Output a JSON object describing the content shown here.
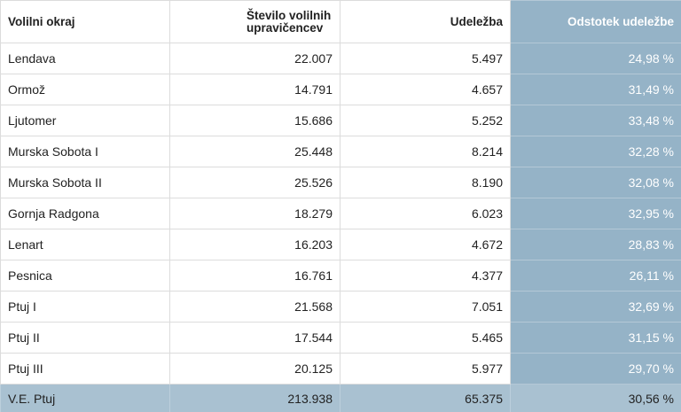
{
  "table": {
    "header": [
      "Volilni okraj",
      "Število volilnih upravičencev",
      "Udeležba",
      "Odstotek udeležbe"
    ],
    "rows": [
      [
        "Lendava",
        "22.007",
        "5.497",
        "24,98 %"
      ],
      [
        "Ormož",
        "14.791",
        "4.657",
        "31,49 %"
      ],
      [
        "Ljutomer",
        "15.686",
        "5.252",
        "33,48 %"
      ],
      [
        "Murska Sobota I",
        "25.448",
        "8.214",
        "32,28 %"
      ],
      [
        "Murska Sobota II",
        "25.526",
        "8.190",
        "32,08 %"
      ],
      [
        "Gornja Radgona",
        "18.279",
        "6.023",
        "32,95 %"
      ],
      [
        "Lenart",
        "16.203",
        "4.672",
        "28,83 %"
      ],
      [
        "Pesnica",
        "16.761",
        "4.377",
        "26,11 %"
      ],
      [
        "Ptuj I",
        "21.568",
        "7.051",
        "32,69 %"
      ],
      [
        "Ptuj II",
        "17.544",
        "5.465",
        "31,15 %"
      ],
      [
        "Ptuj III",
        "20.125",
        "5.977",
        "29,70 %"
      ]
    ],
    "footer": [
      "V.E. Ptuj",
      "213.938",
      "65.375",
      "30,56 %"
    ]
  }
}
